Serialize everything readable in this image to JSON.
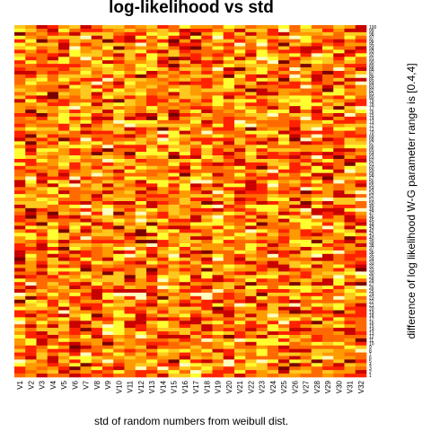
{
  "chart_data": {
    "type": "heatmap",
    "title": "log-likelihood vs std",
    "xlabel": "std of random numbers from weibull dist.",
    "ylabel": "difference of log likelihood W-G parameter range is [0.4,4]",
    "columns": [
      "V1",
      "V2",
      "V3",
      "V4",
      "V5",
      "V6",
      "V7",
      "V8",
      "V9",
      "V10",
      "V11",
      "V12",
      "V13",
      "V14",
      "V15",
      "V16",
      "V17",
      "V18",
      "V19",
      "V20",
      "V21",
      "V22",
      "V23",
      "V24",
      "V25",
      "V26",
      "V27",
      "V28",
      "V29",
      "V30",
      "V31",
      "V32"
    ],
    "rows": [
      1,
      2,
      3,
      4,
      5,
      6,
      7,
      8,
      9,
      10,
      11,
      12,
      13,
      14,
      15,
      16,
      17,
      18,
      19,
      20,
      21,
      22,
      23,
      24,
      25,
      26,
      27,
      28,
      29,
      30,
      31,
      32,
      33,
      34,
      35,
      36,
      37,
      38,
      39,
      40,
      41,
      42,
      43,
      44,
      45,
      46,
      47,
      48,
      49,
      50,
      51,
      52,
      53,
      54,
      55,
      56,
      57,
      58,
      59,
      60,
      61,
      62,
      63,
      64,
      65,
      66,
      67,
      68,
      69,
      70,
      71,
      72,
      73,
      74,
      75,
      76,
      77,
      78,
      79,
      80,
      81,
      82,
      83,
      84,
      85,
      86,
      87,
      88,
      89,
      90,
      91,
      92,
      93,
      94,
      95,
      96,
      97,
      98,
      99,
      100
    ],
    "color_scale": [
      "#7a0000",
      "#c80000",
      "#ff2200",
      "#ff6a00",
      "#ff9a00",
      "#ffc81e",
      "#ffff30",
      "#ffffc0"
    ],
    "color_scale_name": "heat",
    "legend": "none"
  }
}
